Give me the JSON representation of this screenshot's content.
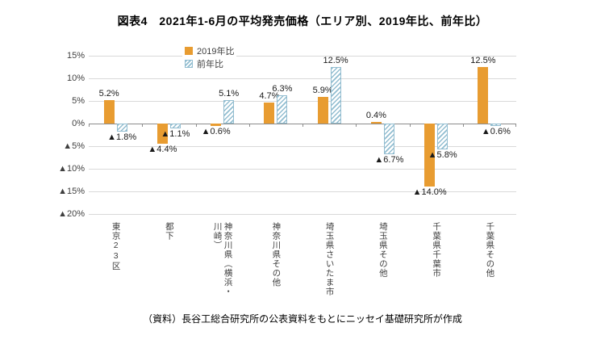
{
  "source_note": "（資料）長谷工総合研究所の公表資料をもとにニッセイ基礎研究所が作成",
  "chart_data": {
    "type": "bar",
    "title": "図表4　2021年1-6月の平均発売価格（エリア別、2019年比、前年比）",
    "categories": [
      "東京23区",
      "都下",
      "神奈川県（横浜・川崎）",
      "神奈川県その他",
      "埼玉県さいたま市",
      "埼玉県その他",
      "千葉県千葉市",
      "千葉県その他"
    ],
    "series": [
      {
        "name": "2019年比",
        "pattern": "solid",
        "color": "#E89C31",
        "values": [
          5.2,
          -4.4,
          -0.6,
          4.7,
          5.9,
          0.4,
          -14.0,
          12.5
        ]
      },
      {
        "name": "前年比",
        "pattern": "diagonal-hatch",
        "color": "#92BDD0",
        "values": [
          -1.8,
          -1.1,
          5.1,
          6.3,
          12.5,
          -6.7,
          -5.8,
          -0.6
        ]
      }
    ],
    "ylim": [
      -20,
      15
    ],
    "ytick_step": 5,
    "ytick_labels": [
      "15%",
      "10%",
      "5%",
      "0%",
      "▲5%",
      "▲10%",
      "▲15%",
      "▲20%"
    ],
    "negative_prefix": "▲",
    "grid": true,
    "legend_position": "top-left"
  }
}
